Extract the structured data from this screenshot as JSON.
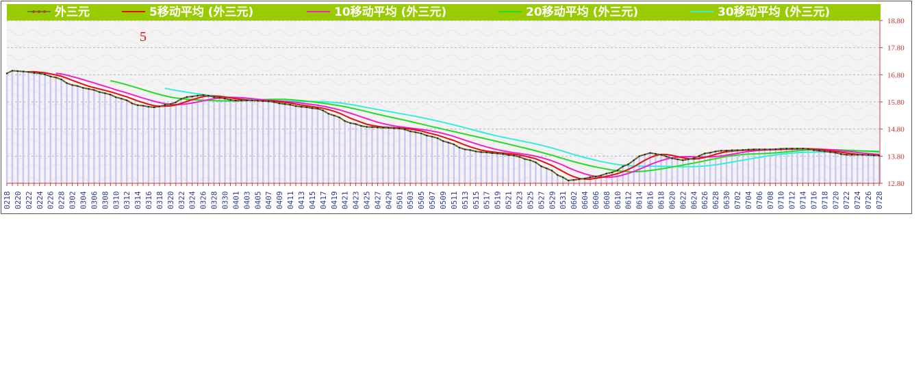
{
  "chart_data": {
    "type": "line",
    "legend": [
      {
        "label": "外三元",
        "color": "#4a8f4a"
      },
      {
        "label": "5移动平均 (外三元)",
        "color": "#e01010"
      },
      {
        "label": "10移动平均 (外三元)",
        "color": "#ee22cc"
      },
      {
        "label": "20移动平均 (外三元)",
        "color": "#22dd22"
      },
      {
        "label": "30移动平均 (外三元)",
        "color": "#33eedd"
      }
    ],
    "legend_background": "#99cc00",
    "annotation": "5",
    "ylim": [
      12.8,
      18.8
    ],
    "yticks": [
      "12.80",
      "13.80",
      "14.80",
      "15.80",
      "16.80",
      "17.80",
      "18.80"
    ],
    "x": [
      "0218",
      "0219",
      "0220",
      "0221",
      "0222",
      "0223",
      "0224",
      "0225",
      "0226",
      "0227",
      "0228",
      "0301",
      "0302",
      "0303",
      "0304",
      "0305",
      "0306",
      "0307",
      "0308",
      "0309",
      "0310",
      "0311",
      "0312",
      "0313",
      "0314",
      "0315",
      "0316",
      "0317",
      "0318",
      "0319",
      "0320",
      "0321",
      "0322",
      "0323",
      "0324",
      "0325",
      "0326",
      "0327",
      "0328",
      "0329",
      "0330",
      "0331",
      "0401",
      "0402",
      "0403",
      "0404",
      "0405",
      "0406",
      "0407",
      "0408",
      "0409",
      "0410",
      "0411",
      "0412",
      "0413",
      "0414",
      "0415",
      "0416",
      "0417",
      "0418",
      "0419",
      "0420",
      "0421",
      "0422",
      "0423",
      "0424",
      "0425",
      "0426",
      "0427",
      "0428",
      "0429",
      "0430",
      "0501",
      "0502",
      "0503",
      "0504",
      "0505",
      "0506",
      "0507",
      "0508",
      "0509",
      "0510",
      "0511",
      "0512",
      "0513",
      "0514",
      "0515",
      "0516",
      "0517",
      "0518",
      "0519",
      "0520",
      "0521",
      "0522",
      "0523",
      "0524",
      "0525",
      "0526",
      "0527",
      "0528",
      "0529",
      "0530",
      "0531",
      "0601",
      "0602",
      "0603",
      "0604",
      "0605",
      "0606",
      "0607",
      "0608",
      "0609",
      "0610",
      "0611",
      "0612",
      "0613",
      "0614",
      "0615",
      "0616",
      "0617",
      "0618",
      "0619",
      "0620",
      "0621",
      "0622",
      "0623",
      "0624",
      "0625",
      "0626",
      "0627",
      "0628",
      "0629",
      "0630",
      "0701",
      "0702",
      "0703",
      "0704",
      "0705",
      "0706",
      "0707",
      "0708",
      "0709",
      "0710",
      "0711",
      "0712",
      "0713",
      "0714",
      "0715",
      "0716",
      "0717",
      "0718",
      "0719",
      "0720",
      "0721",
      "0722",
      "0723",
      "0724",
      "0725",
      "0726",
      "0727",
      "0728"
    ],
    "x_tick_every": 2,
    "anchors": [
      {
        "i": 0,
        "v": 16.85
      },
      {
        "i": 1,
        "v": 16.95
      },
      {
        "i": 3,
        "v": 16.92
      },
      {
        "i": 6,
        "v": 16.85
      },
      {
        "i": 9,
        "v": 16.7
      },
      {
        "i": 12,
        "v": 16.42
      },
      {
        "i": 15,
        "v": 16.28
      },
      {
        "i": 18,
        "v": 16.12
      },
      {
        "i": 21,
        "v": 15.92
      },
      {
        "i": 24,
        "v": 15.68
      },
      {
        "i": 27,
        "v": 15.6
      },
      {
        "i": 30,
        "v": 15.72
      },
      {
        "i": 33,
        "v": 15.98
      },
      {
        "i": 36,
        "v": 16.05
      },
      {
        "i": 39,
        "v": 15.95
      },
      {
        "i": 42,
        "v": 15.85
      },
      {
        "i": 45,
        "v": 15.85
      },
      {
        "i": 48,
        "v": 15.82
      },
      {
        "i": 51,
        "v": 15.72
      },
      {
        "i": 54,
        "v": 15.62
      },
      {
        "i": 57,
        "v": 15.55
      },
      {
        "i": 60,
        "v": 15.3
      },
      {
        "i": 63,
        "v": 15.02
      },
      {
        "i": 66,
        "v": 14.88
      },
      {
        "i": 69,
        "v": 14.85
      },
      {
        "i": 72,
        "v": 14.82
      },
      {
        "i": 75,
        "v": 14.68
      },
      {
        "i": 78,
        "v": 14.52
      },
      {
        "i": 81,
        "v": 14.3
      },
      {
        "i": 84,
        "v": 14.05
      },
      {
        "i": 87,
        "v": 13.95
      },
      {
        "i": 90,
        "v": 13.9
      },
      {
        "i": 93,
        "v": 13.82
      },
      {
        "i": 96,
        "v": 13.65
      },
      {
        "i": 99,
        "v": 13.35
      },
      {
        "i": 102,
        "v": 13.02
      },
      {
        "i": 103,
        "v": 12.9
      },
      {
        "i": 105,
        "v": 12.95
      },
      {
        "i": 108,
        "v": 13.05
      },
      {
        "i": 111,
        "v": 13.2
      },
      {
        "i": 114,
        "v": 13.5
      },
      {
        "i": 116,
        "v": 13.8
      },
      {
        "i": 118,
        "v": 13.92
      },
      {
        "i": 120,
        "v": 13.85
      },
      {
        "i": 122,
        "v": 13.72
      },
      {
        "i": 124,
        "v": 13.65
      },
      {
        "i": 126,
        "v": 13.72
      },
      {
        "i": 128,
        "v": 13.9
      },
      {
        "i": 131,
        "v": 14.0
      },
      {
        "i": 134,
        "v": 14.02
      },
      {
        "i": 137,
        "v": 14.05
      },
      {
        "i": 140,
        "v": 14.05
      },
      {
        "i": 143,
        "v": 14.08
      },
      {
        "i": 146,
        "v": 14.08
      },
      {
        "i": 149,
        "v": 14.0
      },
      {
        "i": 151,
        "v": 13.95
      },
      {
        "i": 154,
        "v": 13.85
      },
      {
        "i": 157,
        "v": 13.85
      },
      {
        "i": 160,
        "v": 13.82
      }
    ],
    "moving_average_periods": [
      5,
      10,
      20,
      30
    ]
  }
}
